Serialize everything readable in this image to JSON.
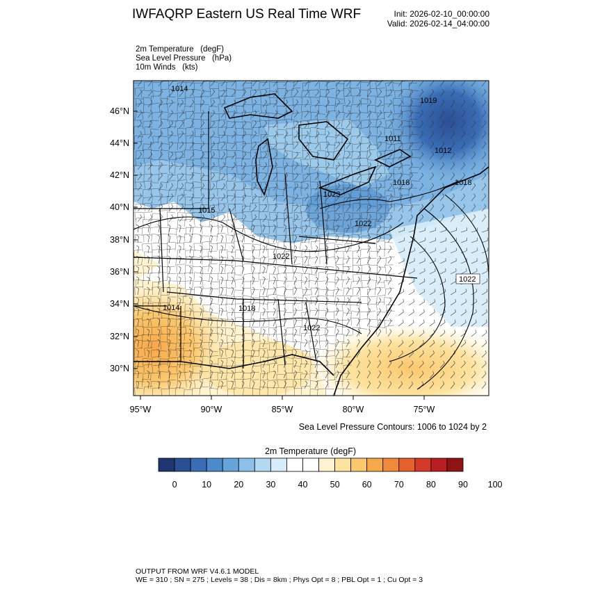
{
  "header": {
    "title": "IWFAQRP Eastern US Real Time WRF",
    "init_label": "Init: 2026-02-10_00:00:00",
    "valid_label": "Valid: 2026-02-14_04:00:00"
  },
  "fields": [
    {
      "name": "2m Temperature",
      "unit": "(degF)"
    },
    {
      "name": "Sea Level Pressure",
      "unit": "(hPa)"
    },
    {
      "name": "10m Winds",
      "unit": "(kts)"
    }
  ],
  "map": {
    "lat_labels": [
      "46°N",
      "44°N",
      "42°N",
      "40°N",
      "38°N",
      "36°N",
      "34°N",
      "32°N",
      "30°N"
    ],
    "lon_labels": [
      "95°W",
      "90°W",
      "85°W",
      "80°W",
      "75°W"
    ],
    "pressure_labels": [
      "1014",
      "1019",
      "1011",
      "1012",
      "1018",
      "1018",
      "1023",
      "1015",
      "1022",
      "1022",
      "1022",
      "1014",
      "1018",
      "1022"
    ]
  },
  "contour_note": "Sea Level Pressure Contours: 1006 to 1024 by 2",
  "colorbar": {
    "title": "2m Temperature  (degF)",
    "colors": [
      "#1f3670",
      "#2b4f95",
      "#3a6db5",
      "#4c8acb",
      "#66a4da",
      "#8cc0e8",
      "#b2d8f2",
      "#d6ecf8",
      "#ffffff",
      "#ffffff",
      "#fff3d0",
      "#fde3a0",
      "#fbc86e",
      "#f6a94a",
      "#ef8a3a",
      "#e6612f",
      "#d43a2a",
      "#b81f25",
      "#8e1414"
    ],
    "tick_labels": [
      "0",
      "10",
      "20",
      "30",
      "40",
      "50",
      "60",
      "70",
      "80",
      "90",
      "100"
    ]
  },
  "footer": {
    "line1": "OUTPUT FROM WRF V4.6.1 MODEL",
    "line2": "WE = 310 ; SN = 275 ; Levels = 38 ; Dis = 8km ; Phys Opt = 8 ; PBL Opt = 1 ; Cu Opt = 3"
  }
}
